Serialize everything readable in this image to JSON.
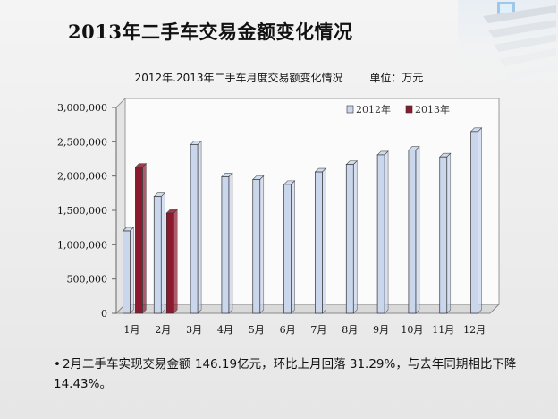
{
  "slide_title": "2013年二手车交易金额变化情况",
  "chart_heading": "2012年.2013年二手车月度交易额变化情况",
  "chart_unit": "单位：万元",
  "bullet_text": "2月二手车实现交易金额 146.19亿元，环比上月回落 31.29%，与去年同期相比下降 14.43%。",
  "chart_data": {
    "type": "bar",
    "title": "2012年.2013年二手车月度交易额变化情况",
    "categories": [
      "1月",
      "2月",
      "3月",
      "4月",
      "5月",
      "6月",
      "7月",
      "8月",
      "9月",
      "10月",
      "11月",
      "12月"
    ],
    "y_tick_labels": [
      "0",
      "500,000",
      "1,000,000",
      "1,500,000",
      "2,000,000",
      "2,500,000",
      "3,000,000"
    ],
    "ylim": [
      0,
      3000000
    ],
    "legend_position": "top-right",
    "series": [
      {
        "name": "2012年",
        "color": "#c9d6ec",
        "values": [
          1200000,
          1700000,
          2460000,
          1990000,
          1950000,
          1880000,
          2060000,
          2170000,
          2310000,
          2380000,
          2280000,
          2650000
        ]
      },
      {
        "name": "2013年",
        "color": "#8b1a2e",
        "values": [
          2130000,
          1460000,
          null,
          null,
          null,
          null,
          null,
          null,
          null,
          null,
          null,
          null
        ]
      }
    ]
  },
  "colors": {
    "bar_2012": "#c9d6ec",
    "bar_2013": "#8b1a2e",
    "plot_wall": "#f7f7f7"
  }
}
